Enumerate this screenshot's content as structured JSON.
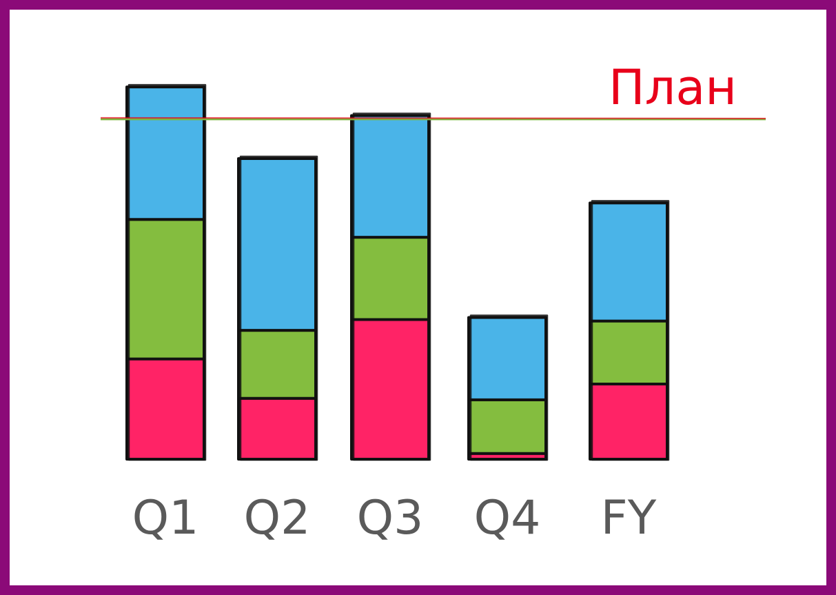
{
  "chart_data": {
    "type": "bar",
    "stacked": true,
    "categories": [
      "Q1",
      "Q2",
      "Q3",
      "Q4",
      "FY"
    ],
    "series": [
      {
        "color": "#ff2366",
        "values": [
          1.4,
          0.85,
          1.95,
          0.08,
          1.05
        ]
      },
      {
        "color": "#84bd3f",
        "values": [
          1.95,
          0.95,
          1.15,
          0.75,
          0.88
        ]
      },
      {
        "color": "#4ab4e8",
        "values": [
          1.85,
          2.4,
          1.7,
          1.15,
          1.65
        ]
      }
    ],
    "plan": {
      "label": "План",
      "value": 4.75,
      "color": "#e8001a"
    },
    "ylim": [
      0,
      5.5
    ],
    "grid": false
  }
}
